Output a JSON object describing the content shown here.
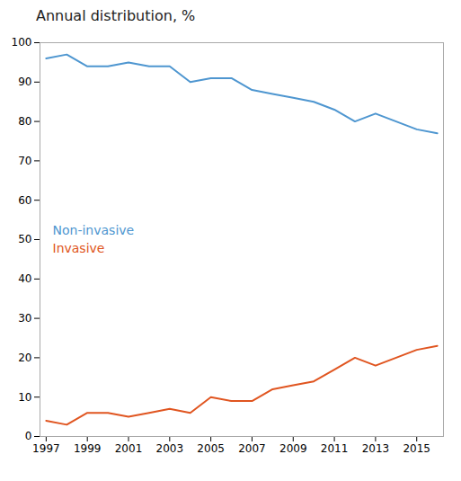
{
  "chart_data": {
    "type": "line",
    "title": "Annual distribution, %",
    "x": [
      1997,
      1998,
      1999,
      2000,
      2001,
      2002,
      2003,
      2004,
      2005,
      2006,
      2007,
      2008,
      2009,
      2010,
      2011,
      2012,
      2013,
      2014,
      2015,
      2016
    ],
    "series": [
      {
        "name": "Non-invasive",
        "color": "#4e96d0",
        "values": [
          96,
          97,
          94,
          94,
          95,
          94,
          94,
          90,
          91,
          91,
          88,
          87,
          86,
          85,
          83,
          80,
          82,
          80,
          78,
          77
        ]
      },
      {
        "name": "Invasive",
        "color": "#e05520",
        "values": [
          4,
          3,
          6,
          6,
          5,
          6,
          7,
          6,
          10,
          9,
          9,
          12,
          13,
          14,
          17,
          20,
          18,
          20,
          22,
          23
        ]
      }
    ],
    "xlim": [
      1996.7,
      2016.3
    ],
    "xticks": [
      1997,
      1999,
      2001,
      2003,
      2005,
      2007,
      2009,
      2011,
      2013,
      2015
    ],
    "ylim": [
      0,
      100
    ],
    "yticks": [
      0,
      10,
      20,
      30,
      40,
      50,
      60,
      70,
      80,
      90,
      100
    ],
    "grid": false,
    "legend": "left"
  }
}
